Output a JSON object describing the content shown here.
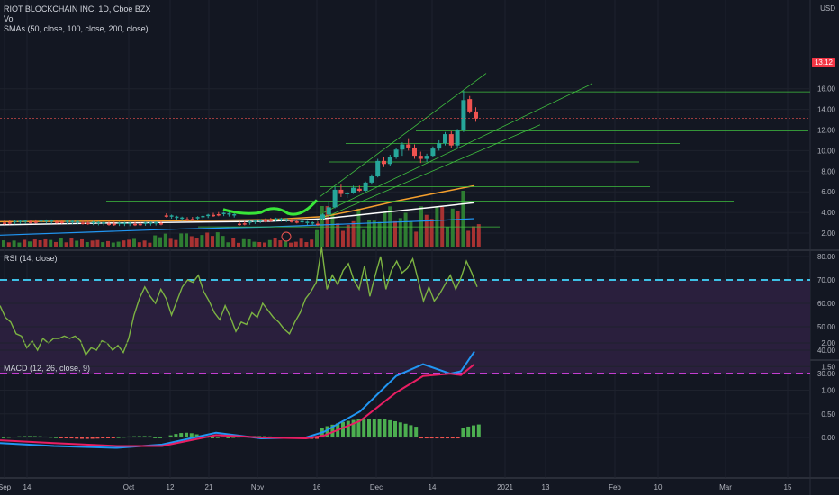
{
  "colors": {
    "background": "#131722",
    "up": "#26a69a",
    "down": "#ef5350",
    "trend": "#3fbf3f",
    "sma50": "#f6a02d",
    "sma100": "#ffffff",
    "sma200": "#2196f3",
    "rsi": "#7cb342",
    "macd": "#2196f3",
    "signal": "#e91e63"
  },
  "header": {
    "title": "RIOT BLOCKCHAIN INC, 1D, Cboe BZX",
    "vol": "Vol",
    "smas": "SMAs (50, close, 100, close, 200, close)"
  },
  "price_panel": {
    "currency": "USD",
    "last_price": "13.12",
    "y_ticks": [
      "16.00",
      "14.00",
      "12.00",
      "10.00",
      "8.00",
      "6.00",
      "4.00",
      "2.00"
    ]
  },
  "rsi_panel": {
    "title": "RSI (14, close)",
    "y_ticks": [
      "80.00",
      "70.00",
      "60.00",
      "50.00",
      "40.00",
      "30.00"
    ]
  },
  "macd_panel": {
    "title": "MACD (12, 26, close, 9)",
    "y_ticks": [
      "2.00",
      "1.50",
      "1.00",
      "0.50",
      "0.00"
    ]
  },
  "x_ticks": [
    "Sep",
    "14",
    "Oct",
    "12",
    "21",
    "Nov",
    "16",
    "Dec",
    "14",
    "2021",
    "13",
    "Feb",
    "10",
    "Mar",
    "15"
  ],
  "chart_data": [
    {
      "type": "candlestick",
      "title": "RIOT BLOCKCHAIN INC, 1D, Cboe BZX",
      "y_ticks": [
        16,
        14,
        12,
        10,
        8,
        6,
        4,
        2
      ],
      "ylabel": "USD",
      "ohlc_recent": [
        {
          "o": 3.4,
          "h": 3.9,
          "l": 3.3,
          "c": 3.8
        },
        {
          "o": 3.8,
          "h": 5.0,
          "l": 3.7,
          "c": 4.5
        },
        {
          "o": 4.5,
          "h": 6.5,
          "l": 4.4,
          "c": 6.2
        },
        {
          "o": 6.2,
          "h": 6.7,
          "l": 5.5,
          "c": 5.8
        },
        {
          "o": 5.8,
          "h": 6.0,
          "l": 5.4,
          "c": 5.9
        },
        {
          "o": 5.9,
          "h": 6.6,
          "l": 5.8,
          "c": 6.4
        },
        {
          "o": 6.3,
          "h": 6.6,
          "l": 6.0,
          "c": 6.1
        },
        {
          "o": 6.1,
          "h": 7.0,
          "l": 6.0,
          "c": 6.9
        },
        {
          "o": 6.9,
          "h": 7.7,
          "l": 6.7,
          "c": 7.5
        },
        {
          "o": 7.5,
          "h": 9.2,
          "l": 7.4,
          "c": 9.0
        },
        {
          "o": 9.0,
          "h": 9.4,
          "l": 8.4,
          "c": 8.7
        },
        {
          "o": 8.7,
          "h": 9.6,
          "l": 8.5,
          "c": 9.4
        },
        {
          "o": 9.4,
          "h": 10.3,
          "l": 9.2,
          "c": 10.1
        },
        {
          "o": 10.1,
          "h": 10.8,
          "l": 9.5,
          "c": 10.6
        },
        {
          "o": 10.6,
          "h": 11.2,
          "l": 10.0,
          "c": 10.3
        },
        {
          "o": 10.3,
          "h": 10.6,
          "l": 9.2,
          "c": 9.5
        },
        {
          "o": 9.5,
          "h": 9.9,
          "l": 8.8,
          "c": 9.2
        },
        {
          "o": 9.2,
          "h": 9.7,
          "l": 8.9,
          "c": 9.5
        },
        {
          "o": 9.5,
          "h": 10.4,
          "l": 9.4,
          "c": 10.2
        },
        {
          "o": 10.2,
          "h": 11.0,
          "l": 10.0,
          "c": 10.7
        },
        {
          "o": 10.7,
          "h": 11.8,
          "l": 10.5,
          "c": 11.6
        },
        {
          "o": 11.6,
          "h": 11.9,
          "l": 10.3,
          "c": 10.5
        },
        {
          "o": 10.5,
          "h": 12.1,
          "l": 10.3,
          "c": 12.0
        },
        {
          "o": 12.0,
          "h": 15.8,
          "l": 11.8,
          "c": 14.9
        },
        {
          "o": 15.0,
          "h": 15.3,
          "l": 13.6,
          "c": 13.8
        },
        {
          "o": 13.8,
          "h": 14.2,
          "l": 12.8,
          "c": 13.12
        }
      ],
      "sma50": [
        [
          0,
          3.1
        ],
        [
          100,
          3.15
        ],
        [
          200,
          3.2
        ],
        [
          300,
          3.3
        ],
        [
          360,
          3.6
        ],
        [
          400,
          4.3
        ],
        [
          440,
          5.1
        ],
        [
          480,
          5.8
        ],
        [
          527,
          6.6
        ]
      ],
      "sma100": [
        [
          0,
          2.8
        ],
        [
          100,
          2.95
        ],
        [
          200,
          3.05
        ],
        [
          300,
          3.15
        ],
        [
          360,
          3.4
        ],
        [
          420,
          3.95
        ],
        [
          480,
          4.5
        ],
        [
          527,
          4.95
        ]
      ],
      "sma200": [
        [
          0,
          1.8
        ],
        [
          100,
          2.1
        ],
        [
          200,
          2.4
        ],
        [
          300,
          2.6
        ],
        [
          360,
          2.8
        ],
        [
          420,
          3.0
        ],
        [
          480,
          3.2
        ],
        [
          527,
          3.4
        ]
      ],
      "horizontal_levels": [
        15.7,
        11.9,
        10.7,
        8.9,
        6.5,
        5.1,
        2.6
      ]
    },
    {
      "type": "line",
      "title": "RSI (14, close)",
      "y_ticks": [
        80,
        70,
        60,
        50,
        40,
        30
      ],
      "bands": [
        30,
        70
      ],
      "values": [
        59,
        54,
        52,
        47,
        46,
        41,
        44,
        40,
        45,
        43,
        45,
        45,
        46,
        45,
        46,
        44,
        38,
        41,
        40,
        44,
        43,
        40,
        42,
        39,
        45,
        55,
        62,
        67,
        63,
        60,
        66,
        62,
        55,
        61,
        67,
        70,
        69,
        72,
        65,
        61,
        56,
        53,
        59,
        54,
        48,
        52,
        51,
        56,
        54,
        60,
        57,
        54,
        52,
        49,
        47,
        52,
        56,
        62,
        65,
        69,
        84,
        66,
        72,
        68,
        74,
        77,
        70,
        66,
        76,
        63,
        72,
        80,
        66,
        74,
        78,
        73,
        75,
        79,
        70,
        61,
        67,
        61,
        64,
        68,
        72,
        66,
        71,
        78,
        73,
        67
      ]
    },
    {
      "type": "bar+line",
      "title": "MACD (12, 26, close, 9)",
      "y_ticks": [
        2.0,
        1.5,
        1.0,
        0.5,
        0.0
      ],
      "macd": [
        [
          0,
          -0.12
        ],
        [
          60,
          -0.18
        ],
        [
          130,
          -0.22
        ],
        [
          180,
          -0.15
        ],
        [
          240,
          0.1
        ],
        [
          290,
          -0.02
        ],
        [
          340,
          0.0
        ],
        [
          360,
          0.12
        ],
        [
          400,
          0.55
        ],
        [
          440,
          1.3
        ],
        [
          470,
          1.55
        ],
        [
          500,
          1.35
        ],
        [
          512,
          1.4
        ],
        [
          527,
          1.82
        ]
      ],
      "signal": [
        [
          0,
          -0.06
        ],
        [
          60,
          -0.12
        ],
        [
          130,
          -0.18
        ],
        [
          180,
          -0.18
        ],
        [
          240,
          0.05
        ],
        [
          290,
          0.0
        ],
        [
          340,
          -0.02
        ],
        [
          360,
          0.04
        ],
        [
          400,
          0.35
        ],
        [
          440,
          0.95
        ],
        [
          470,
          1.3
        ],
        [
          500,
          1.35
        ],
        [
          512,
          1.32
        ],
        [
          527,
          1.55
        ]
      ]
    }
  ]
}
